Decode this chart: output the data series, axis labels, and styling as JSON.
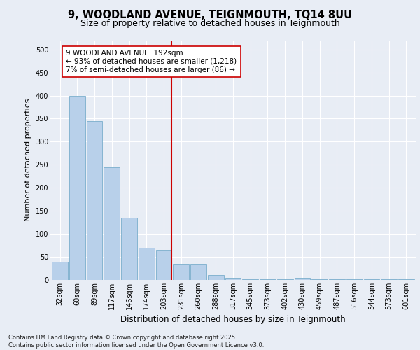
{
  "title_line1": "9, WOODLAND AVENUE, TEIGNMOUTH, TQ14 8UU",
  "title_line2": "Size of property relative to detached houses in Teignmouth",
  "xlabel": "Distribution of detached houses by size in Teignmouth",
  "ylabel": "Number of detached properties",
  "categories": [
    "32sqm",
    "60sqm",
    "89sqm",
    "117sqm",
    "146sqm",
    "174sqm",
    "203sqm",
    "231sqm",
    "260sqm",
    "288sqm",
    "317sqm",
    "345sqm",
    "373sqm",
    "402sqm",
    "430sqm",
    "459sqm",
    "487sqm",
    "516sqm",
    "544sqm",
    "573sqm",
    "601sqm"
  ],
  "values": [
    40,
    400,
    345,
    245,
    135,
    70,
    65,
    35,
    35,
    10,
    5,
    2,
    2,
    2,
    5,
    2,
    2,
    2,
    2,
    2,
    2
  ],
  "bar_color": "#b8d0ea",
  "bar_edge_color": "#7aaecc",
  "vline_color": "#cc0000",
  "annotation_text": "9 WOODLAND AVENUE: 192sqm\n← 93% of detached houses are smaller (1,218)\n7% of semi-detached houses are larger (86) →",
  "annotation_box_color": "#ffffff",
  "annotation_box_edge": "#cc0000",
  "ylim": [
    0,
    520
  ],
  "yticks": [
    0,
    50,
    100,
    150,
    200,
    250,
    300,
    350,
    400,
    450,
    500
  ],
  "footer_text": "Contains HM Land Registry data © Crown copyright and database right 2025.\nContains public sector information licensed under the Open Government Licence v3.0.",
  "bg_color": "#e8edf5",
  "plot_bg_color": "#e8edf5",
  "title1_fontsize": 10.5,
  "title2_fontsize": 9,
  "ylabel_fontsize": 8,
  "xlabel_fontsize": 8.5,
  "tick_fontsize": 7,
  "annotation_fontsize": 7.5,
  "footer_fontsize": 6
}
